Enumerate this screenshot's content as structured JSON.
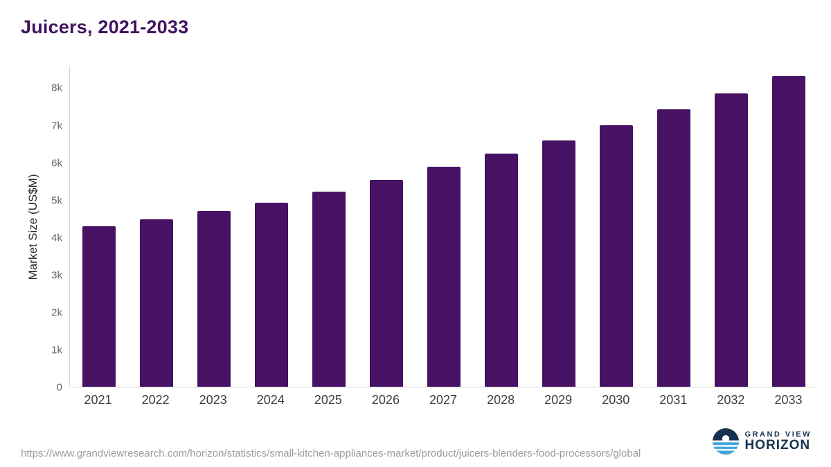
{
  "header": {
    "title": "Juicers, 2021-2033"
  },
  "chart_data": {
    "type": "bar",
    "title": "Juicers, 2021-2033",
    "xlabel": "",
    "ylabel": "Market Size (US$M)",
    "categories": [
      "2021",
      "2022",
      "2023",
      "2024",
      "2025",
      "2026",
      "2027",
      "2028",
      "2029",
      "2030",
      "2031",
      "2032",
      "2033"
    ],
    "values": [
      4300,
      4480,
      4700,
      4930,
      5220,
      5550,
      5890,
      6250,
      6600,
      7000,
      7430,
      7860,
      8320
    ],
    "ylim": [
      0,
      8600
    ],
    "yticks": [
      0,
      1000,
      2000,
      3000,
      4000,
      5000,
      6000,
      7000,
      8000
    ],
    "ytick_labels": [
      "0",
      "1k",
      "2k",
      "3k",
      "4k",
      "5k",
      "6k",
      "7k",
      "8k"
    ],
    "bar_color": "#471264",
    "grid": false,
    "legend": "none"
  },
  "footer": {
    "source_url": "https://www.grandviewresearch.com/horizon/statistics/small-kitchen-appliances-market/product/juicers-blenders-food-processors/global",
    "logo": {
      "line1": "GRAND VIEW",
      "line2": "HORIZON"
    }
  },
  "colors": {
    "title": "#40125f",
    "bar": "#471264",
    "axis_line": "#d9d9d9",
    "tick_text": "#666666",
    "source_text": "#9b9b9b",
    "logo_navy": "#16324f",
    "logo_blue": "#3ea7dc"
  }
}
